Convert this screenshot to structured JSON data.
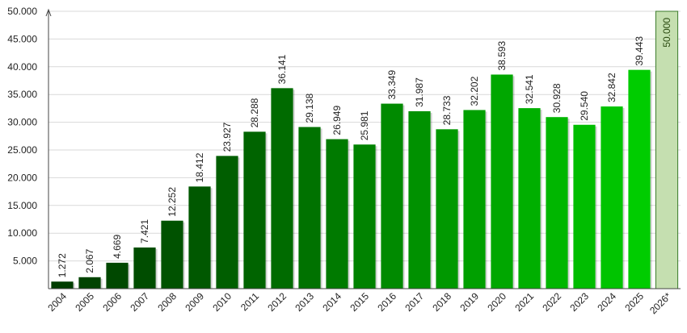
{
  "chart_data": {
    "type": "bar",
    "title": "",
    "xlabel": "",
    "ylabel": "",
    "ylim": [
      0,
      50000
    ],
    "yticks": [
      5000,
      10000,
      15000,
      20000,
      25000,
      30000,
      35000,
      40000,
      45000,
      50000
    ],
    "ytick_labels": [
      "5.000",
      "10.000",
      "15.000",
      "20.000",
      "25.000",
      "30.000",
      "35.000",
      "40.000",
      "45.000",
      "50.000"
    ],
    "grid": true,
    "legend": "none",
    "categories": [
      "2004",
      "2005",
      "2006",
      "2007",
      "2008",
      "2009",
      "2010",
      "2011",
      "2012",
      "2013",
      "2014",
      "2015",
      "2016",
      "2017",
      "2018",
      "2019",
      "2020",
      "2021",
      "2022",
      "2023",
      "2024",
      "2025",
      "2026*"
    ],
    "values": [
      1272,
      2067,
      4669,
      7421,
      12252,
      18412,
      23927,
      28288,
      36141,
      29138,
      26949,
      25981,
      33349,
      31987,
      28733,
      32202,
      38593,
      32541,
      30928,
      29540,
      32842,
      39443,
      50000
    ],
    "value_labels": [
      "1.272",
      "2.067",
      "4.669",
      "7.421",
      "12.252",
      "18.412",
      "23.927",
      "28.288",
      "36.141",
      "29.138",
      "26.949",
      "25.981",
      "33.349",
      "31.987",
      "28.733",
      "32.202",
      "38.593",
      "32.541",
      "30.928",
      "29.540",
      "32.842",
      "39.443",
      "50.000"
    ],
    "bar_colors": [
      "#003d00",
      "#004300",
      "#004800",
      "#004d00",
      "#005200",
      "#005800",
      "#005e00",
      "#006400",
      "#006b00",
      "#007200",
      "#007a00",
      "#008200",
      "#008a00",
      "#009100",
      "#009800",
      "#00a000",
      "#00a700",
      "#00af00",
      "#00b600",
      "#00bd00",
      "#00c400",
      "#00cc00",
      "#c5dfb0"
    ],
    "projected_category": "2026*",
    "colors": {
      "bar_gradient_start": "#003d00",
      "bar_gradient_end": "#00cc00",
      "projected_fill": "#c5dfb0",
      "projected_border": "#3a7a2a",
      "grid": "#d9d9d9",
      "axis": "#444444"
    }
  }
}
